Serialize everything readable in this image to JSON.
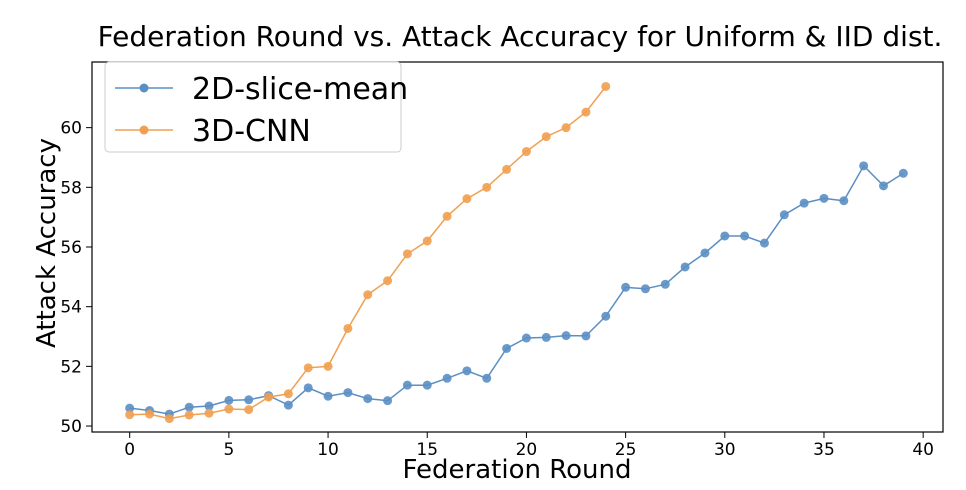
{
  "chart_data": {
    "type": "line",
    "title": "Federation Round vs. Attack Accuracy for Uniform & IID dist.",
    "xlabel": "Federation Round",
    "ylabel": "Attack Accuracy",
    "xlim": [
      -1.9,
      41.0
    ],
    "ylim": [
      49.8,
      62.2
    ],
    "xticks": [
      0,
      5,
      10,
      15,
      20,
      25,
      30,
      35,
      40
    ],
    "yticks": [
      50,
      52,
      54,
      56,
      58,
      60
    ],
    "grid": false,
    "legend_position": "top-left",
    "series": [
      {
        "name": "2D-slice-mean",
        "color": "#5b8fc4",
        "x": [
          0,
          1,
          2,
          3,
          4,
          5,
          6,
          7,
          8,
          9,
          10,
          11,
          12,
          13,
          14,
          15,
          16,
          17,
          18,
          19,
          20,
          21,
          22,
          23,
          24,
          25,
          26,
          27,
          28,
          29,
          30,
          31,
          32,
          33,
          34,
          35,
          36,
          37,
          38,
          39
        ],
        "values": [
          50.6,
          50.52,
          50.4,
          50.63,
          50.67,
          50.86,
          50.88,
          51.02,
          50.7,
          51.28,
          51.0,
          51.12,
          50.92,
          50.85,
          51.37,
          51.37,
          51.6,
          51.85,
          51.6,
          52.6,
          52.95,
          52.97,
          53.03,
          53.02,
          53.68,
          54.65,
          54.6,
          54.75,
          55.33,
          55.8,
          56.37,
          56.37,
          56.13,
          57.08,
          57.47,
          57.63,
          57.55,
          58.72,
          58.05,
          58.47
        ]
      },
      {
        "name": "3D-CNN",
        "color": "#f0a050",
        "x": [
          0,
          1,
          2,
          3,
          4,
          5,
          6,
          7,
          8,
          9,
          10,
          11,
          12,
          13,
          14,
          15,
          16,
          17,
          18,
          19,
          20,
          21,
          22,
          23,
          24
        ],
        "values": [
          50.38,
          50.4,
          50.25,
          50.37,
          50.43,
          50.57,
          50.55,
          50.97,
          51.08,
          51.95,
          52.0,
          53.27,
          54.4,
          54.87,
          55.77,
          56.2,
          57.03,
          57.62,
          58.0,
          58.6,
          59.2,
          59.7,
          60.0,
          60.52,
          61.38
        ]
      }
    ]
  }
}
